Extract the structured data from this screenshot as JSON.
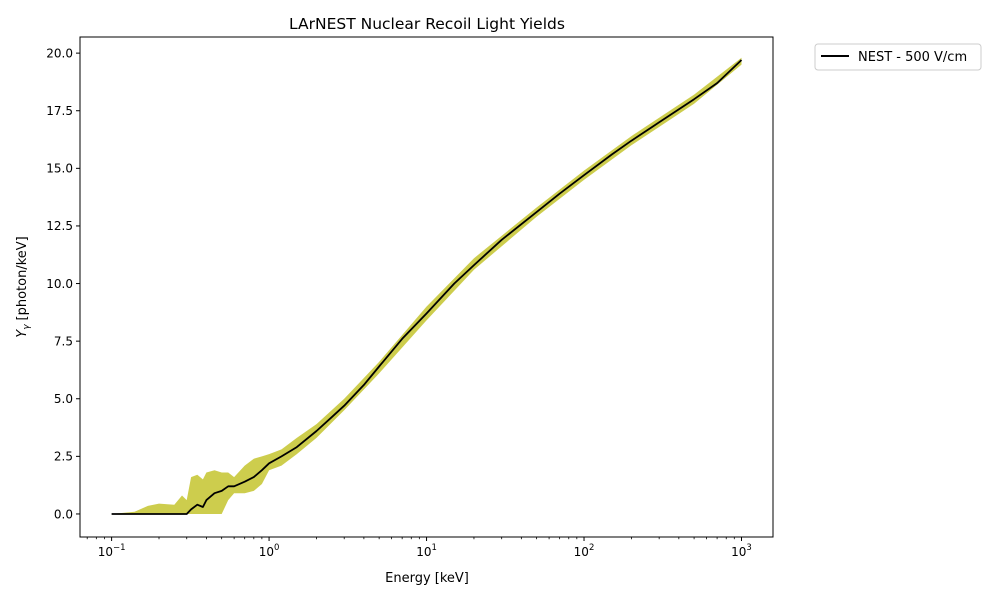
{
  "chart_data": {
    "type": "line",
    "title": "LArNEST Nuclear Recoil Light Yields",
    "xlabel": "Energy [keV]",
    "ylabel": "[photon/keV]",
    "ylabel_symbol": "Y",
    "ylabel_subscript": "γ",
    "xscale": "log",
    "xlim": [
      0.063,
      1585
    ],
    "ylim": [
      -1.0,
      20.7
    ],
    "x_ticks": [
      {
        "base": "10",
        "exp": "−1",
        "value": 0.1
      },
      {
        "base": "10",
        "exp": "0",
        "value": 1
      },
      {
        "base": "10",
        "exp": "1",
        "value": 10
      },
      {
        "base": "10",
        "exp": "2",
        "value": 100
      },
      {
        "base": "10",
        "exp": "3",
        "value": 1000
      }
    ],
    "y_ticks": [
      "0.0",
      "2.5",
      "5.0",
      "7.5",
      "10.0",
      "12.5",
      "15.0",
      "17.5",
      "20.0"
    ],
    "grid": false,
    "legend_position": "outside-top-right",
    "series": [
      {
        "name": "NEST - 500 V/cm",
        "color": "#000000",
        "x": [
          0.1,
          0.2,
          0.3,
          0.32,
          0.35,
          0.38,
          0.4,
          0.45,
          0.5,
          0.55,
          0.6,
          0.7,
          0.8,
          0.9,
          1.0,
          1.2,
          1.5,
          2.0,
          2.5,
          3.0,
          4.0,
          5.0,
          7.0,
          10.0,
          15.0,
          20.0,
          30.0,
          50.0,
          70.0,
          100.0,
          150.0,
          200.0,
          300.0,
          500.0,
          700.0,
          1000.0
        ],
        "y": [
          0.0,
          0.0,
          0.0,
          0.2,
          0.4,
          0.3,
          0.6,
          0.9,
          1.0,
          1.2,
          1.2,
          1.4,
          1.6,
          1.9,
          2.2,
          2.5,
          2.9,
          3.6,
          4.2,
          4.7,
          5.6,
          6.4,
          7.6,
          8.7,
          10.0,
          10.8,
          11.9,
          13.1,
          13.9,
          14.7,
          15.6,
          16.2,
          17.0,
          18.0,
          18.7,
          19.7
        ]
      }
    ],
    "bands": [
      {
        "color": "#c8c83a",
        "x": [
          0.1,
          0.14,
          0.17,
          0.2,
          0.25,
          0.28,
          0.3,
          0.32,
          0.35,
          0.38,
          0.4,
          0.45,
          0.5,
          0.55,
          0.6,
          0.7,
          0.8,
          0.9,
          1.0,
          1.2,
          1.5,
          2.0,
          3.0,
          5.0,
          10.0,
          20.0,
          50.0,
          100.0,
          200.0,
          500.0,
          1000.0
        ],
        "lower": [
          0.0,
          0.0,
          0.0,
          0.0,
          0.0,
          0.0,
          0.0,
          0.0,
          0.0,
          0.0,
          0.0,
          0.0,
          0.0,
          0.6,
          0.9,
          0.9,
          1.0,
          1.3,
          1.9,
          2.1,
          2.6,
          3.3,
          4.5,
          6.1,
          8.4,
          10.6,
          12.9,
          14.5,
          16.0,
          17.8,
          19.5
        ],
        "upper": [
          0.0,
          0.1,
          0.35,
          0.45,
          0.4,
          0.8,
          0.6,
          1.6,
          1.7,
          1.5,
          1.8,
          1.9,
          1.8,
          1.8,
          1.6,
          2.1,
          2.4,
          2.5,
          2.6,
          2.8,
          3.3,
          3.9,
          5.0,
          6.6,
          9.0,
          11.1,
          13.3,
          14.9,
          16.4,
          18.2,
          19.8
        ]
      }
    ]
  }
}
